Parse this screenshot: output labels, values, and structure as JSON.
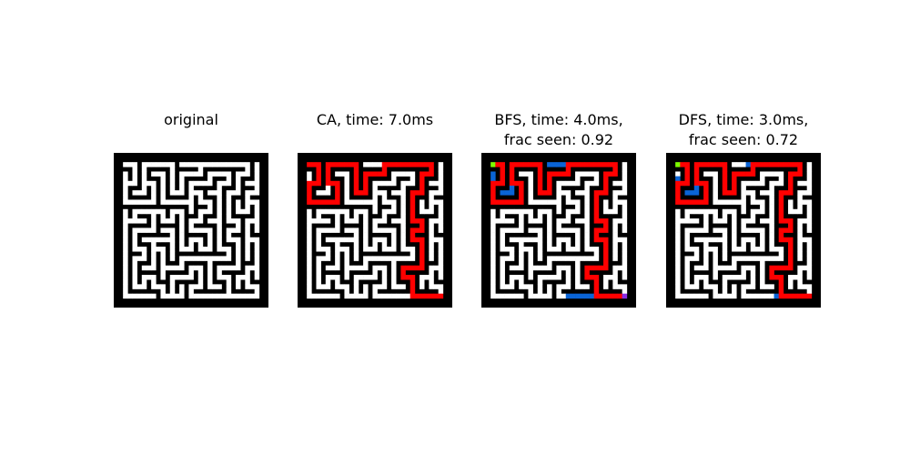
{
  "panels": [
    {
      "id": "original",
      "title": "original",
      "overlay": "none"
    },
    {
      "id": "ca",
      "title": "CA, time: 7.0ms",
      "overlay": "path"
    },
    {
      "id": "bfs",
      "title": "BFS, time: 4.0ms,\nfrac seen: 0.92",
      "overlay": "bfs"
    },
    {
      "id": "dfs",
      "title": "DFS, time: 3.0ms,\nfrac seen: 0.72",
      "overlay": "dfs"
    }
  ],
  "colors": {
    "wall": "#000000",
    "open": "#ffffff",
    "path": "#ff0000",
    "explored": "#0a64d6",
    "start": "#7cfc00",
    "goal": "#8a2be2"
  },
  "maze": {
    "rows": 15,
    "cols": 15,
    "start": [
      0,
      0
    ],
    "goal": [
      14,
      14
    ],
    "maze_seed": 7,
    "dfs_seed": 11
  }
}
